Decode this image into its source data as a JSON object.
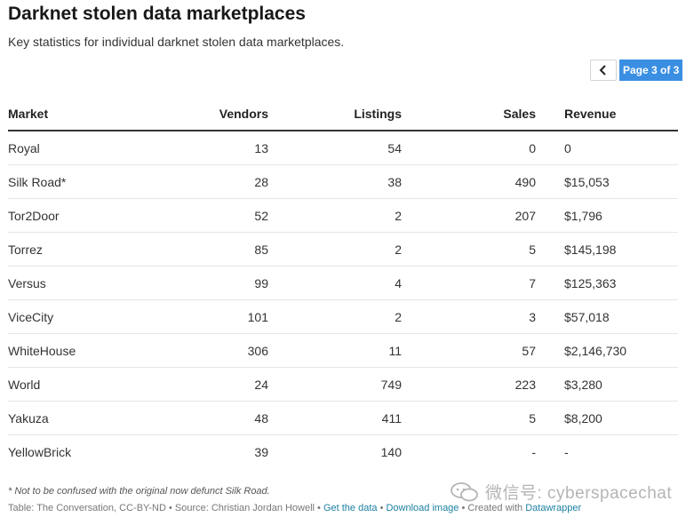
{
  "title": "Darknet stolen data marketplaces",
  "subtitle": "Key statistics for individual darknet stolen data marketplaces.",
  "pager": {
    "prev_icon": "chevron-left-icon",
    "page_label": "Page 3 of 3",
    "accent_color": "#3b8fe2"
  },
  "chart_data": {
    "type": "table",
    "columns": [
      "Market",
      "Vendors",
      "Listings",
      "Sales",
      "Revenue"
    ],
    "rows": [
      [
        "Royal",
        "13",
        "54",
        "0",
        "0"
      ],
      [
        "Silk Road*",
        "28",
        "38",
        "490",
        "$15,053"
      ],
      [
        "Tor2Door",
        "52",
        "2",
        "207",
        "$1,796"
      ],
      [
        "Torrez",
        "85",
        "2",
        "5",
        "$145,198"
      ],
      [
        "Versus",
        "99",
        "4",
        "7",
        "$125,363"
      ],
      [
        "ViceCity",
        "101",
        "2",
        "3",
        "$57,018"
      ],
      [
        "WhiteHouse",
        "306",
        "11",
        "57",
        "$2,146,730"
      ],
      [
        "World",
        "24",
        "749",
        "223",
        "$3,280"
      ],
      [
        "Yakuza",
        "48",
        "411",
        "5",
        "$8,200"
      ],
      [
        "YellowBrick",
        "39",
        "140",
        "-",
        "-"
      ]
    ]
  },
  "footnote": "* Not to be confused with the original now defunct Silk Road.",
  "source": {
    "prefix": "Table: The Conversation, CC-BY-ND • Source: Christian Jordan Howell • ",
    "get_data": "Get the data",
    "sep1": " • ",
    "download_image": "Download image",
    "sep2": " • Created with ",
    "datawrapper": "Datawrapper"
  },
  "watermark": {
    "text": "微信号: cyberspacechat",
    "icon": "wechat-icon"
  }
}
